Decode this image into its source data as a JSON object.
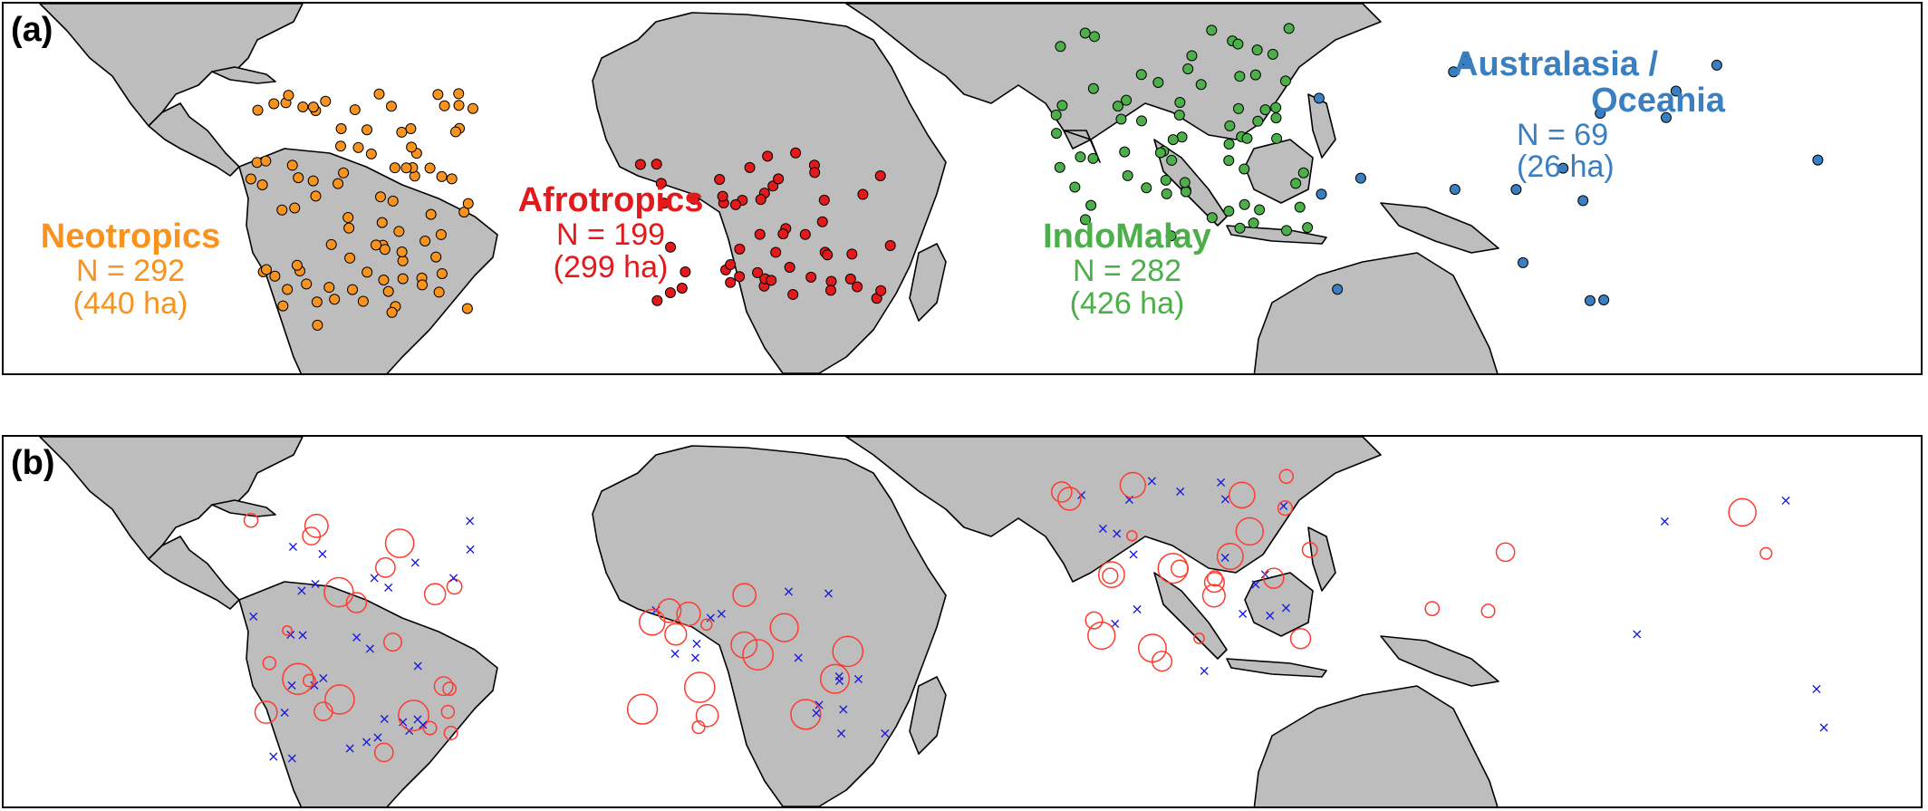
{
  "panels": [
    {
      "id": "a",
      "label": "(a)"
    },
    {
      "id": "b",
      "label": "(b)"
    }
  ],
  "regions": [
    {
      "key": "neo",
      "name": "Neotropics",
      "n": "N = 292",
      "area": "(440 ha)",
      "color": "#f7931e"
    },
    {
      "key": "afro",
      "name": "Afrotropics",
      "n": "N = 199",
      "area": "(299 ha)",
      "color": "#e31a1c"
    },
    {
      "key": "indo",
      "name": "IndoMalay",
      "n": "N = 282",
      "area": "(426 ha)",
      "color": "#4daf4a"
    },
    {
      "key": "aus",
      "name_line1": "Australasia /",
      "name_line2": "Oceania",
      "n": "N = 69",
      "area": "(26 ha)",
      "color": "#3a7fc1"
    }
  ],
  "colors": {
    "land": "#bdbdbd",
    "border": "#000000",
    "circles": "#ff3b2f",
    "crosses": "#1515e0"
  }
}
